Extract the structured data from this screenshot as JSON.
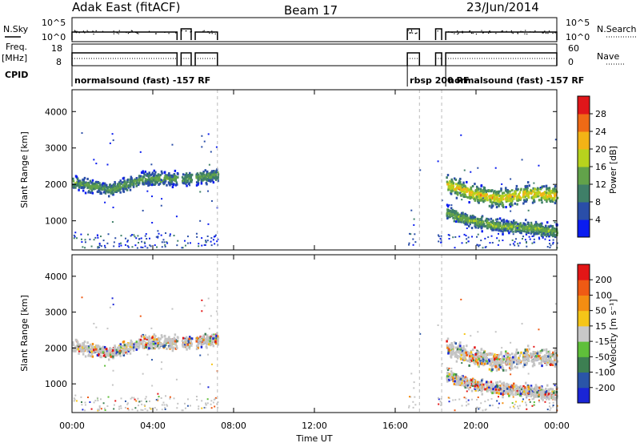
{
  "header": {
    "station": "Adak East (fitACF)",
    "beam": "Beam 17",
    "date": "23/Jun/2014"
  },
  "summary_labels": {
    "nsky": "N.Sky",
    "nsearch": "N.Search",
    "freq": "Freq.",
    "freq_unit": "[MHz]",
    "nave": "Nave",
    "cpid": "CPID"
  },
  "summary_ticks": {
    "noise_left": [
      "10^5",
      "10^0"
    ],
    "noise_right": [
      "10^5",
      "10^0"
    ],
    "freq_left": [
      "18",
      "8"
    ],
    "nave_right": [
      "60",
      "0"
    ]
  },
  "cpid_segments": [
    {
      "label": "normalsound (fast) -157 RF",
      "start_hour": 0.0
    },
    {
      "label": "rbsp 200 RF",
      "start_hour": 16.6
    },
    {
      "label": "normalsound (fast) -157 RF",
      "start_hour": 18.5
    }
  ],
  "colors": {
    "power_scale": [
      "#0a1cf0",
      "#2a4ea8",
      "#3f7f68",
      "#62a24a",
      "#b7d31d",
      "#f3b316",
      "#ef6a16",
      "#e0161a"
    ],
    "velocity_scale": [
      "#1a25d6",
      "#2a55a8",
      "#3d7f52",
      "#5fbf3a",
      "#c8c8c8",
      "#f5c518",
      "#f38d12",
      "#ef5a14",
      "#e31616"
    ],
    "scatter_gray": "#c4c4c4"
  },
  "chart_data": [
    {
      "type": "heatmap",
      "title": "Power",
      "xlabel": "Time UT",
      "ylabel": "Slant Range [km]",
      "xlim": [
        0,
        24
      ],
      "ylim": [
        200,
        4600
      ],
      "x_ticks": [
        "00:00",
        "04:00",
        "08:00",
        "12:00",
        "16:00",
        "20:00",
        "00:00"
      ],
      "y_ticks": [
        1000,
        2000,
        3000,
        4000
      ],
      "colorbar": {
        "label": "Power [dB]",
        "ticks": [
          "28",
          "24",
          "20",
          "16",
          "12",
          "8",
          "4"
        ],
        "range": [
          0,
          30
        ]
      },
      "echo_bands": [
        {
          "x_start": 0.0,
          "x_end": 7.2,
          "center_km": [
            2050,
            1850,
            2150,
            2150,
            2250
          ],
          "width_km": 250,
          "peak_db": 14
        },
        {
          "x_start": 18.3,
          "x_end": 24.0,
          "center_km": [
            2050,
            1750,
            1600,
            1750,
            1700
          ],
          "width_km": 350,
          "peak_db": 22
        },
        {
          "x_start": 18.3,
          "x_end": 24.0,
          "center_km": [
            1250,
            1000,
            850,
            800,
            700
          ],
          "width_km": 250,
          "peak_db": 16
        }
      ]
    },
    {
      "type": "heatmap",
      "title": "Velocity",
      "xlabel": "Time UT",
      "ylabel": "Slant Range [km]",
      "xlim": [
        0,
        24
      ],
      "ylim": [
        200,
        4600
      ],
      "x_ticks": [
        "00:00",
        "04:00",
        "08:00",
        "12:00",
        "16:00",
        "20:00",
        "00:00"
      ],
      "y_ticks": [
        1000,
        2000,
        3000,
        4000
      ],
      "colorbar": {
        "label": "Velocity [m s⁻¹]",
        "ticks": [
          "200",
          "100",
          "50",
          "15",
          "-15",
          "-50",
          "-100",
          "-200"
        ],
        "range": [
          -250,
          250
        ]
      }
    }
  ]
}
